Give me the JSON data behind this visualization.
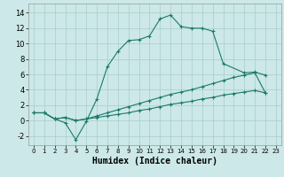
{
  "xlabel": "Humidex (Indice chaleur)",
  "background_color": "#cce8e8",
  "grid_color": "#aacccc",
  "line_color": "#1a7a6a",
  "xlim": [
    -0.5,
    23.5
  ],
  "ylim": [
    -3.2,
    15.2
  ],
  "xticks": [
    0,
    1,
    2,
    3,
    4,
    5,
    6,
    7,
    8,
    9,
    10,
    11,
    12,
    13,
    14,
    15,
    16,
    17,
    18,
    19,
    20,
    21,
    22,
    23
  ],
  "yticks": [
    -2,
    0,
    2,
    4,
    6,
    8,
    10,
    12,
    14
  ],
  "series1_x": [
    0,
    1,
    2,
    3,
    4,
    5,
    6,
    7,
    8,
    9,
    10,
    11,
    12,
    13,
    14,
    15,
    16,
    17,
    18,
    20,
    21,
    22
  ],
  "series1_y": [
    1,
    1,
    0.2,
    -0.3,
    -2.5,
    -0.1,
    2.8,
    7.0,
    9.0,
    10.4,
    10.5,
    11.0,
    13.2,
    13.7,
    12.2,
    12.0,
    12.0,
    11.6,
    7.4,
    6.2,
    6.3,
    5.9
  ],
  "series2_x": [
    0,
    1,
    2,
    3,
    4,
    5,
    6,
    7,
    8,
    9,
    10,
    11,
    12,
    13,
    14,
    15,
    16,
    17,
    18,
    19,
    20,
    21,
    22
  ],
  "series2_y": [
    1,
    1,
    0.2,
    0.4,
    0.0,
    0.2,
    0.6,
    1.0,
    1.4,
    1.8,
    2.2,
    2.6,
    3.0,
    3.4,
    3.7,
    4.0,
    4.4,
    4.8,
    5.2,
    5.6,
    5.9,
    6.2,
    3.6
  ],
  "series3_x": [
    0,
    1,
    2,
    3,
    4,
    5,
    6,
    7,
    8,
    9,
    10,
    11,
    12,
    13,
    14,
    15,
    16,
    17,
    18,
    19,
    20,
    21,
    22
  ],
  "series3_y": [
    1,
    1,
    0.2,
    0.4,
    0.0,
    0.2,
    0.4,
    0.6,
    0.8,
    1.0,
    1.3,
    1.5,
    1.8,
    2.1,
    2.3,
    2.5,
    2.8,
    3.0,
    3.3,
    3.5,
    3.7,
    3.9,
    3.6
  ]
}
